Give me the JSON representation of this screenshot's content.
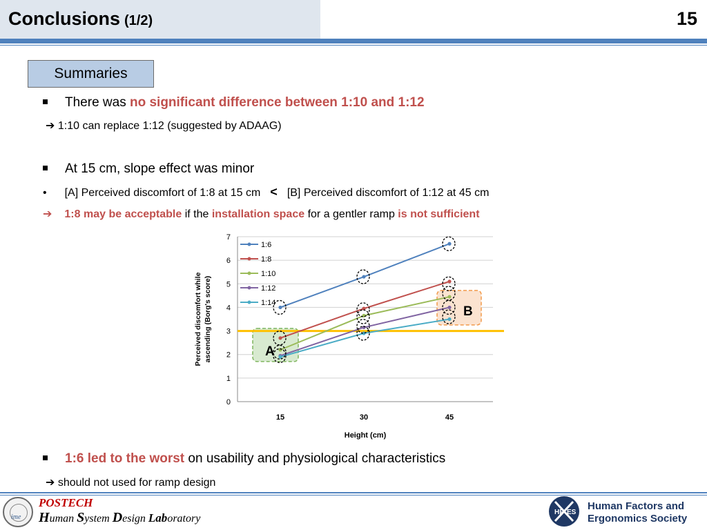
{
  "header": {
    "title": "Conclusions",
    "subtitle": "(1/2)",
    "page_number": "15"
  },
  "summaries_label": "Summaries",
  "points": {
    "p1_prefix": "There was ",
    "p1_highlight": "no significant difference between 1:10 and 1:12",
    "p1_arrow": "1:10 can replace 1:12 (suggested by ADAAG)",
    "p2": "At 15 cm, slope effect was minor",
    "p2_bullet_a": "[A] Perceived discomfort of 1:8 at 15 cm",
    "p2_lt": "<",
    "p2_bullet_b": "[B] Perceived discomfort of 1:12  at 45 cm",
    "p2_arrow_h1": "1:8 may be acceptable",
    "p2_arrow_t1": " if the ",
    "p2_arrow_h2": "installation space",
    "p2_arrow_t2": " for a gentler ramp ",
    "p2_arrow_h3": "is not sufficient",
    "p3_highlight": "1:6 led to the worst",
    "p3_rest": " on usability and physiological characteristics",
    "p3_arrow": "should not used for ramp design"
  },
  "chart_data": {
    "type": "line",
    "x": [
      15,
      30,
      45
    ],
    "xlabel": "Height (cm)",
    "ylabel": "Perceived discomfort while ascending (Borg's score)",
    "ylim": [
      0,
      7
    ],
    "yticks": [
      0,
      1,
      2,
      3,
      4,
      5,
      6,
      7
    ],
    "grid": true,
    "legend_position": "top-left",
    "reference_line": {
      "y": 3,
      "color": "#ffc000"
    },
    "series": [
      {
        "name": "1:6",
        "values": [
          4.0,
          5.3,
          6.7
        ],
        "color": "#4f81bd"
      },
      {
        "name": "1:8",
        "values": [
          2.7,
          3.95,
          5.1
        ],
        "color": "#c0504d"
      },
      {
        "name": "1:10",
        "values": [
          2.2,
          3.65,
          4.45
        ],
        "color": "#9bbb59"
      },
      {
        "name": "1:12",
        "values": [
          1.95,
          3.15,
          4.0
        ],
        "color": "#8064a2"
      },
      {
        "name": "1:14",
        "values": [
          1.9,
          2.9,
          3.5
        ],
        "color": "#4bacc6"
      }
    ],
    "annotations": [
      {
        "label": "A",
        "x": 15,
        "y": 2.2
      },
      {
        "label": "B",
        "x": 45,
        "y": 3.9
      }
    ]
  },
  "footer": {
    "postech": "POSTECH",
    "lab_name": "Human System Design Laboratory",
    "lab_parts": [
      "H",
      "uman ",
      "S",
      "ystem ",
      "D",
      "esign ",
      "Lab",
      "oratory"
    ],
    "seal_text": "ime",
    "hfes_line1": "Human Factors and",
    "hfes_line2": "Ergonomics Society",
    "hfes_logo_text": [
      "HF",
      "ES"
    ]
  }
}
